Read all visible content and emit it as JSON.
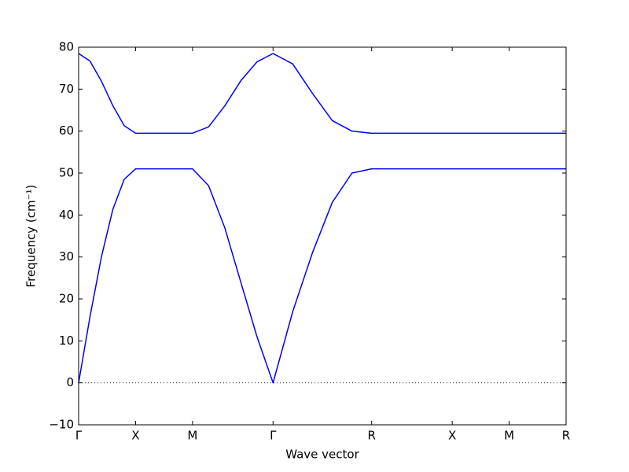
{
  "chart_data": {
    "type": "line",
    "xlabel": "Wave vector",
    "ylabel": "Frequency (cm⁻¹)",
    "x": [
      0,
      0.1,
      0.2,
      0.3,
      0.4,
      0.5,
      0.75,
      1.0,
      1.141,
      1.283,
      1.424,
      1.566,
      1.707,
      1.88,
      2.053,
      2.227,
      2.4,
      2.573,
      3.28,
      3.78,
      4.28
    ],
    "series": [
      {
        "color": "#0000ff",
        "values": [
          0,
          15.8,
          30,
          41.3,
          48.5,
          51,
          51,
          51,
          47,
          37,
          24,
          11,
          0,
          17,
          31,
          43,
          50,
          51,
          51,
          51,
          51
        ]
      },
      {
        "color": "#0000ff",
        "values": [
          78.5,
          76.7,
          71.9,
          66.1,
          61.3,
          59.5,
          59.5,
          59.5,
          61,
          66,
          72,
          76.5,
          78.5,
          76,
          69,
          62.5,
          60,
          59.5,
          59.5,
          59.5,
          59.5
        ]
      }
    ],
    "xlim": [
      0,
      4.28
    ],
    "xticks": [
      {
        "value": 0,
        "label": "Γ"
      },
      {
        "value": 0.5,
        "label": "X"
      },
      {
        "value": 1.0,
        "label": "M"
      },
      {
        "value": 1.707,
        "label": "Γ"
      },
      {
        "value": 2.573,
        "label": "R"
      },
      {
        "value": 3.28,
        "label": "X"
      },
      {
        "value": 3.78,
        "label": "M"
      },
      {
        "value": 4.28,
        "label": "R"
      }
    ],
    "ylim": [
      -10,
      80
    ],
    "yticks": [
      {
        "value": -10,
        "label": "−10"
      },
      0,
      10,
      20,
      30,
      40,
      50,
      60,
      70,
      80
    ],
    "zero_line": true
  }
}
